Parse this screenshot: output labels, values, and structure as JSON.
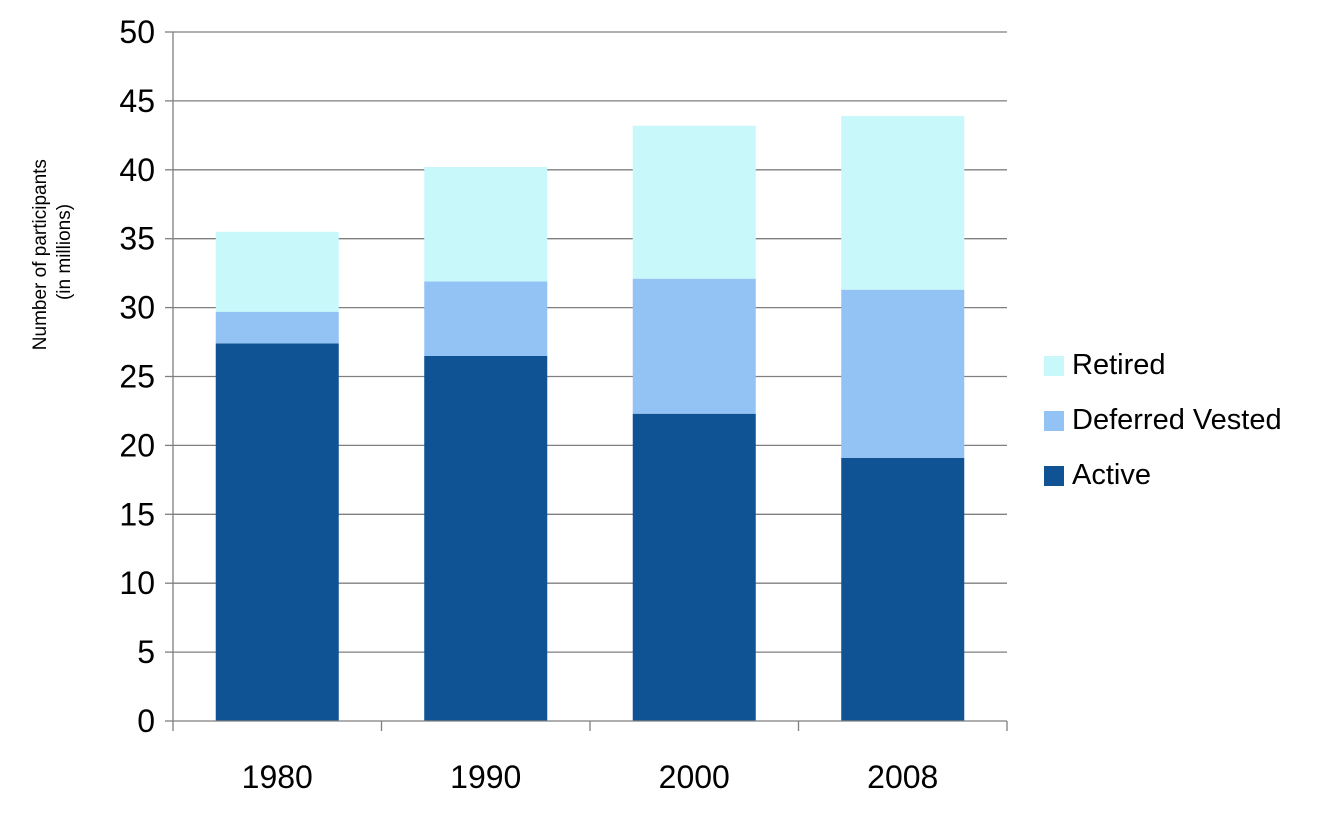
{
  "chart_data": {
    "type": "bar",
    "stacked": true,
    "categories": [
      "1980",
      "1990",
      "2000",
      "2008"
    ],
    "series": [
      {
        "name": "Active",
        "color": "#0f5394",
        "values": [
          27.4,
          26.5,
          22.3,
          19.1
        ]
      },
      {
        "name": "Deferred Vested",
        "color": "#93c3f5",
        "values": [
          2.3,
          5.4,
          9.8,
          12.2
        ]
      },
      {
        "name": "Retired",
        "color": "#c8f8fa",
        "values": [
          5.8,
          8.3,
          11.1,
          12.6
        ]
      }
    ],
    "ylabel_lines": [
      "Number of participants",
      "(in millions)"
    ],
    "ylim": [
      0,
      50
    ],
    "yticks": [
      "0",
      "5",
      "10",
      "15",
      "20",
      "25",
      "30",
      "35",
      "40",
      "45",
      "50"
    ],
    "grid": true,
    "legend_position": "right",
    "legend_order": [
      "Retired",
      "Deferred Vested",
      "Active"
    ]
  }
}
